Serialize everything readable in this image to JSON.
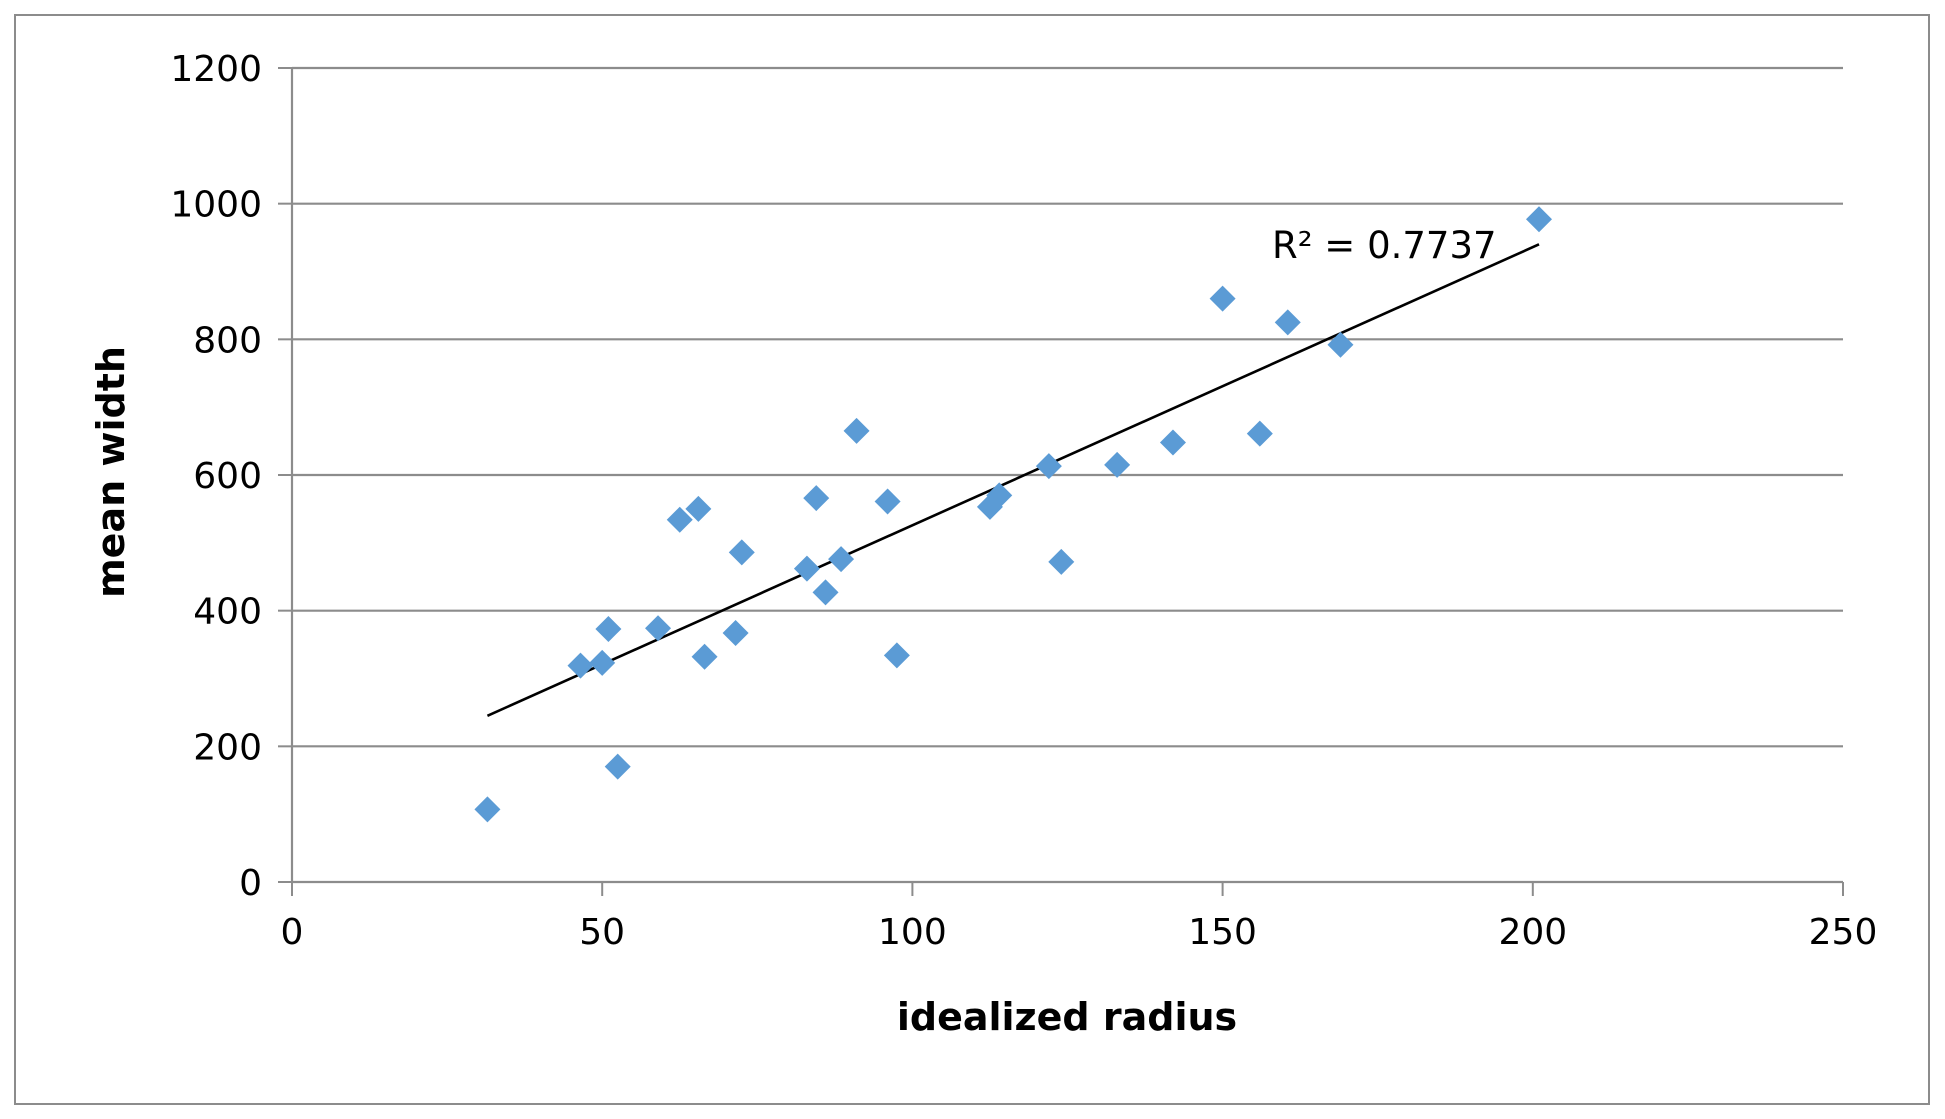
{
  "chart_data": {
    "type": "scatter",
    "title": "",
    "xlabel": "idealized radius",
    "ylabel": "mean width",
    "xlim": [
      0,
      250
    ],
    "ylim": [
      0,
      1200
    ],
    "xticks": [
      0,
      50,
      100,
      150,
      200,
      250
    ],
    "yticks": [
      0,
      200,
      400,
      600,
      800,
      1000,
      1200
    ],
    "grid": "horizontal",
    "legend": "none",
    "colors": {
      "points": "#5b9bd5",
      "trendline": "#000000",
      "grid": "#8c8c8c",
      "axis": "#8c8c8c"
    },
    "points": [
      {
        "x": 31.5,
        "y": 107
      },
      {
        "x": 46.5,
        "y": 319
      },
      {
        "x": 50,
        "y": 323
      },
      {
        "x": 51,
        "y": 373
      },
      {
        "x": 52.5,
        "y": 170
      },
      {
        "x": 59,
        "y": 374
      },
      {
        "x": 62.5,
        "y": 534
      },
      {
        "x": 65.5,
        "y": 550
      },
      {
        "x": 66.5,
        "y": 332
      },
      {
        "x": 71.5,
        "y": 367
      },
      {
        "x": 72.5,
        "y": 486
      },
      {
        "x": 83,
        "y": 462
      },
      {
        "x": 84.5,
        "y": 566
      },
      {
        "x": 86,
        "y": 427
      },
      {
        "x": 88.5,
        "y": 476
      },
      {
        "x": 91,
        "y": 665
      },
      {
        "x": 96,
        "y": 561
      },
      {
        "x": 97.5,
        "y": 334
      },
      {
        "x": 112.5,
        "y": 553
      },
      {
        "x": 114,
        "y": 570
      },
      {
        "x": 122,
        "y": 613
      },
      {
        "x": 124,
        "y": 472
      },
      {
        "x": 133,
        "y": 615
      },
      {
        "x": 142,
        "y": 648
      },
      {
        "x": 150,
        "y": 860
      },
      {
        "x": 156,
        "y": 661
      },
      {
        "x": 160.5,
        "y": 825
      },
      {
        "x": 169,
        "y": 792
      },
      {
        "x": 201,
        "y": 977
      }
    ],
    "trendline": {
      "type": "linear",
      "x": [
        31.5,
        201
      ],
      "y": [
        245,
        940
      ],
      "r2_label": "R² = 0.7737"
    }
  }
}
